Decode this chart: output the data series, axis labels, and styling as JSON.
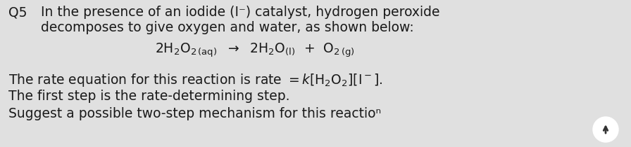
{
  "background_color": "#e0e0e0",
  "text_color": "#1a1a1a",
  "q_label": "Q5",
  "line1": "In the presence of an iodide (I⁻) catalyst, hydrogen peroxide",
  "line2": "decomposes to give oxygen and water, as shown below:",
  "line4": "The first step is the rate-determining step.",
  "line5": "Suggest a possible two-step mechanism for this reactioⁿ",
  "main_fontsize": 13.5,
  "arrow_color": "#333333",
  "arrow_bg": "#c8c8c8"
}
